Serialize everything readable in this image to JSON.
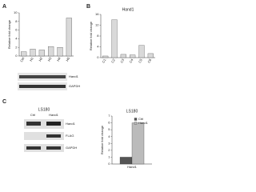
{
  "figure": {
    "panels": [
      "A",
      "B",
      "C"
    ],
    "blot_a": [
      "Hand1",
      "GAPDH"
    ],
    "blot_c": {
      "title": "LS180",
      "lanes": [
        "Ctrl",
        "Hand1"
      ],
      "rows": [
        "Hand1",
        "FLAG",
        "GAPDH"
      ]
    }
  },
  "chart_data": [
    {
      "type": "bar",
      "ylabel": "Relative fold change",
      "categories": [
        "Ctrl",
        "H1",
        "H2",
        "H3",
        "H4",
        "H5"
      ],
      "values": [
        1,
        1.6,
        1.4,
        2.2,
        2.0,
        8.8
      ],
      "color": "#d9d9d9",
      "ylim": [
        0,
        10
      ],
      "yticks": [
        0,
        2,
        4,
        6,
        8,
        10
      ]
    },
    {
      "type": "bar",
      "title": "Hand1",
      "ylabel": "Relative fold change",
      "categories": [
        "C1",
        "C2",
        "C3",
        "C4",
        "C5",
        "C6"
      ],
      "values": [
        0.6,
        14,
        1.2,
        1,
        4.5,
        1.5
      ],
      "color": "#d9d9d9",
      "ylim": [
        0,
        16
      ],
      "yticks": [
        0,
        4,
        8,
        12,
        16
      ]
    },
    {
      "type": "bar",
      "title": "LS180",
      "ylabel": "Relative fold change",
      "categories": [
        "Hand1"
      ],
      "series": [
        {
          "name": "Ctrl",
          "color": "#555555",
          "values": [
            1
          ]
        },
        {
          "name": "Hand1",
          "color": "#bbbbbb",
          "values": [
            6
          ]
        }
      ],
      "ylim": [
        0,
        7
      ],
      "yticks": [
        0,
        1,
        2,
        3,
        4,
        5,
        6,
        7
      ],
      "legend": "upper right"
    }
  ]
}
